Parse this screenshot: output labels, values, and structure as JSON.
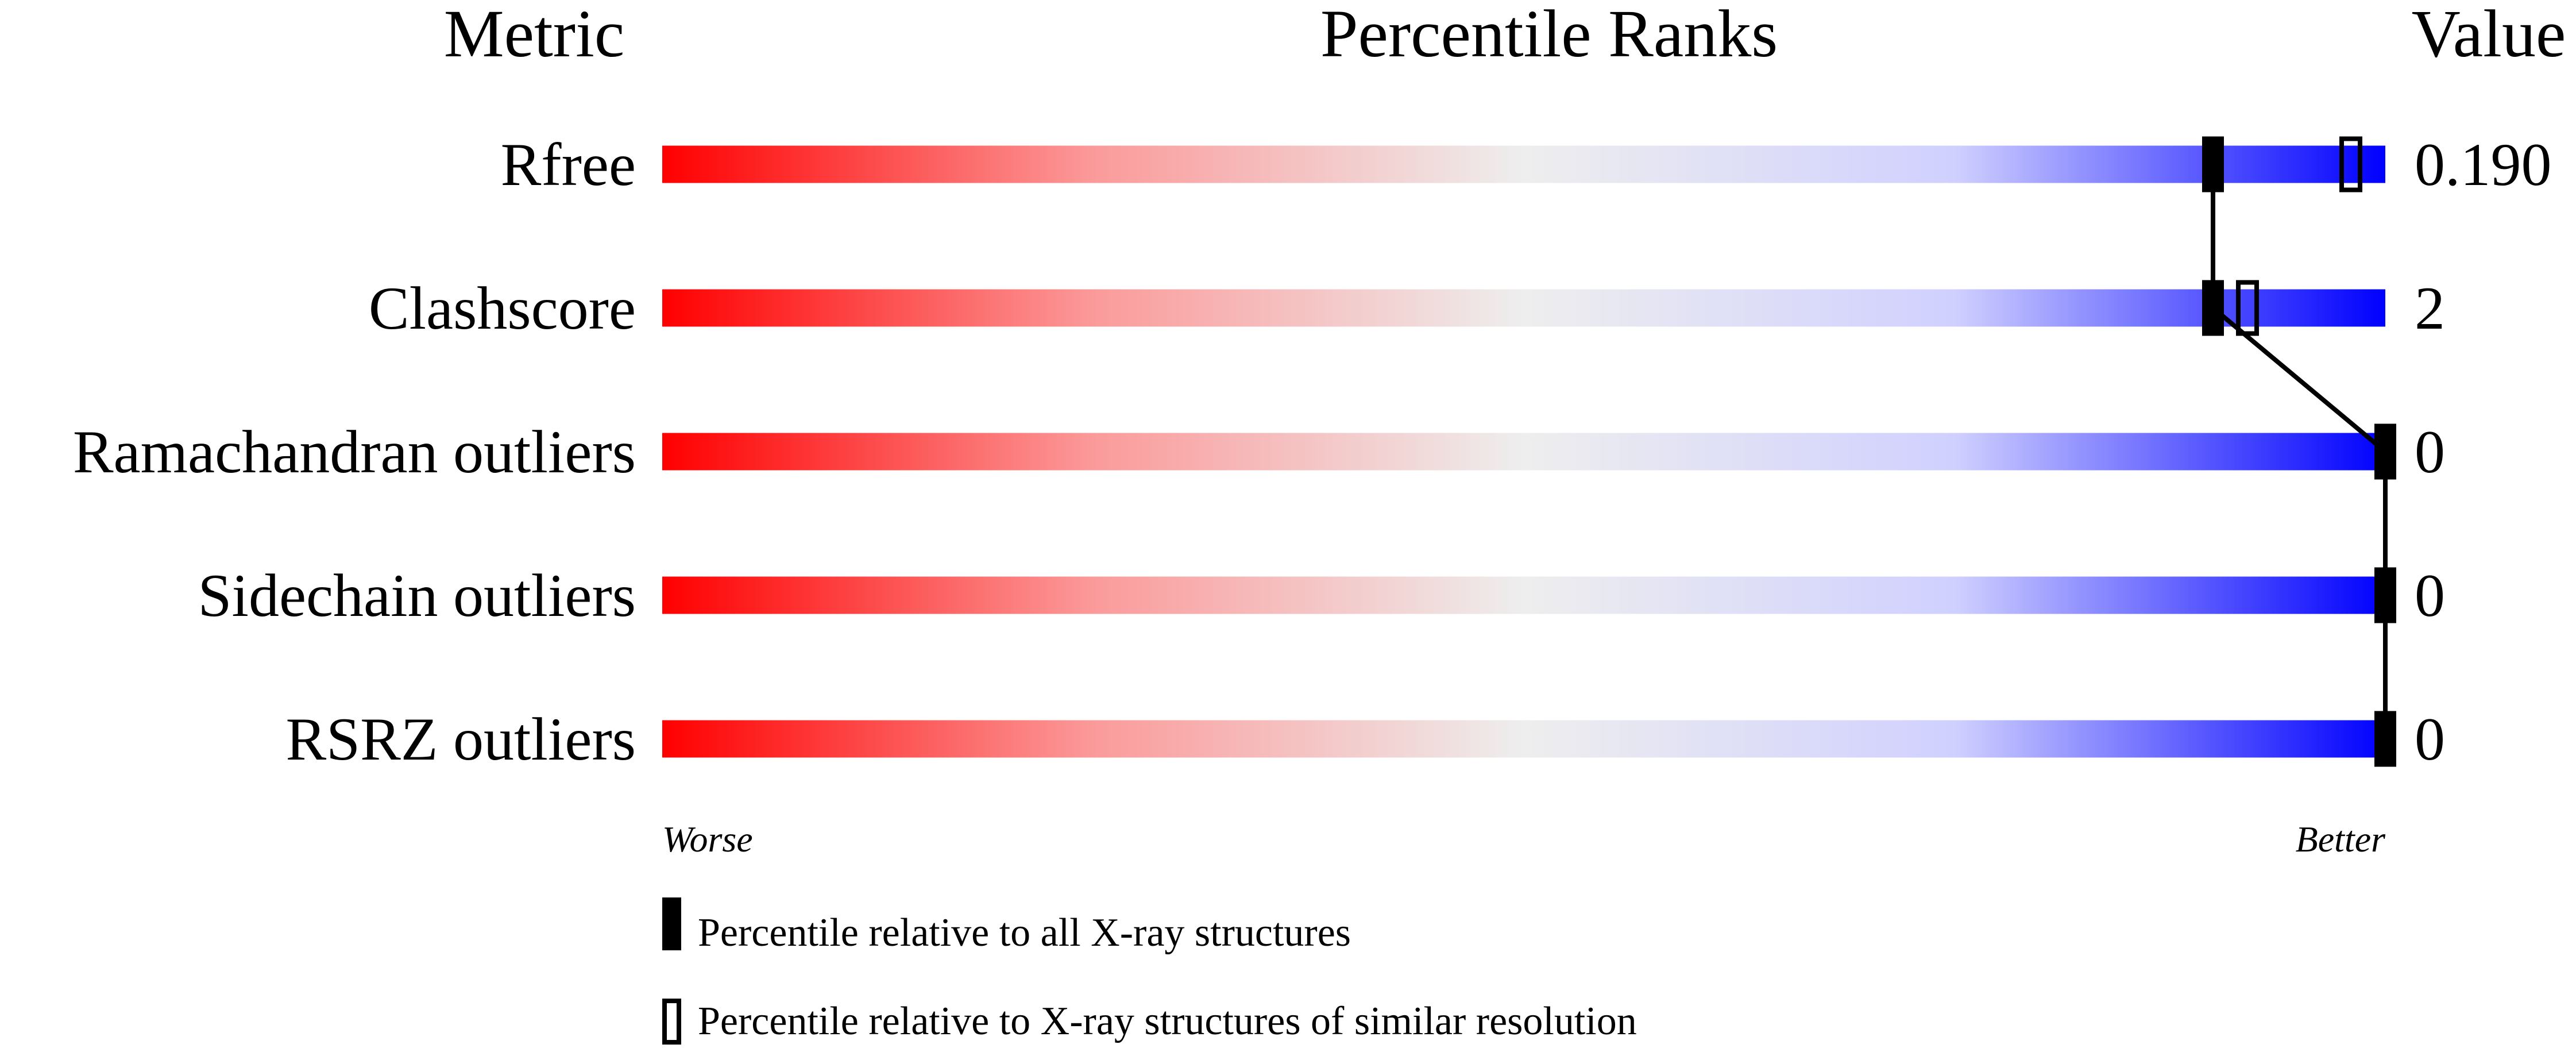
{
  "chart_data": {
    "type": "percentile-slider",
    "headers": {
      "metric": "Metric",
      "ranks": "Percentile Ranks",
      "value": "Value"
    },
    "xlim": [
      0,
      100
    ],
    "axis_ends": {
      "left": "Worse",
      "right": "Better"
    },
    "gradient_colors": [
      "#ff0000",
      "#f0f0f0",
      "#0000ff"
    ],
    "metrics": [
      {
        "name": "Rfree",
        "value": "0.190",
        "percentile_all": 90,
        "percentile_similar": 98
      },
      {
        "name": "Clashscore",
        "value": "2",
        "percentile_all": 90,
        "percentile_similar": 92
      },
      {
        "name": "Ramachandran outliers",
        "value": "0",
        "percentile_all": 100,
        "percentile_similar": null
      },
      {
        "name": "Sidechain outliers",
        "value": "0",
        "percentile_all": 100,
        "percentile_similar": null
      },
      {
        "name": "RSRZ outliers",
        "value": "0",
        "percentile_all": 100,
        "percentile_similar": null
      }
    ],
    "legend": [
      {
        "marker": "filled",
        "label": "Percentile relative to all X-ray structures"
      },
      {
        "marker": "open",
        "label": "Percentile relative to X-ray structures of similar resolution"
      }
    ]
  }
}
